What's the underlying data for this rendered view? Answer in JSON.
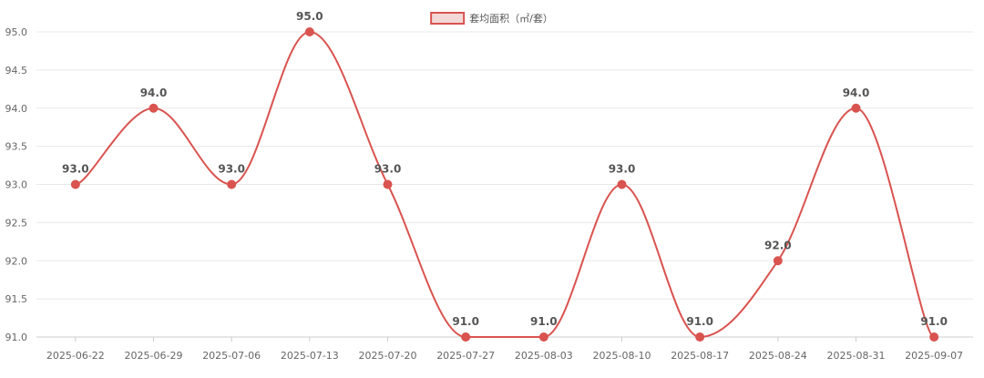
{
  "chart_data": {
    "type": "line",
    "title": "",
    "xlabel": "",
    "ylabel": "",
    "categories": [
      "2025-06-22",
      "2025-06-29",
      "2025-07-06",
      "2025-07-13",
      "2025-07-20",
      "2025-07-27",
      "2025-08-03",
      "2025-08-10",
      "2025-08-17",
      "2025-08-24",
      "2025-08-31",
      "2025-09-07"
    ],
    "series": [
      {
        "name": "套均面积（㎡/套）",
        "values": [
          93.0,
          94.0,
          93.0,
          95.0,
          93.0,
          91.0,
          91.0,
          93.0,
          91.0,
          92.0,
          94.0,
          91.0
        ],
        "color": "#d9534f"
      }
    ],
    "ylim": [
      91.0,
      95.0
    ],
    "yticks": [
      "91.0",
      "91.5",
      "92.0",
      "92.5",
      "93.0",
      "93.5",
      "94.0",
      "94.5",
      "95.0"
    ],
    "data_labels": [
      "93.0",
      "94.0",
      "93.0",
      "95.0",
      "93.0",
      "91.0",
      "91.0",
      "93.0",
      "91.0",
      "92.0",
      "94.0",
      "91.0"
    ],
    "grid": true,
    "legend": "top-center",
    "line_smooth": true
  }
}
